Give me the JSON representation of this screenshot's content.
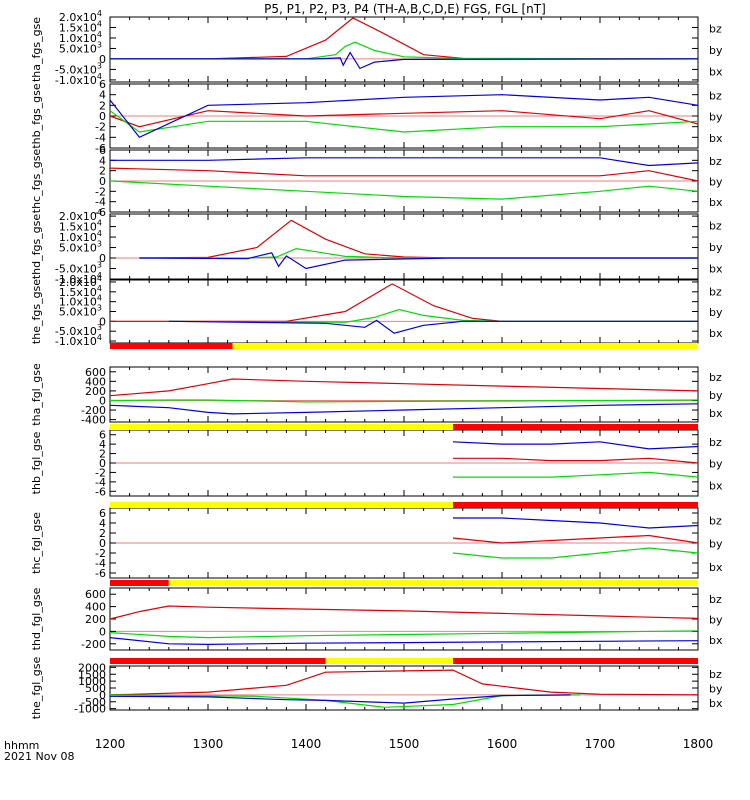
{
  "title": "P5, P1, P2, P3, P4 (TH-A,B,C,D,E) FGS, FGL [nT]",
  "footer": {
    "line1": "hhmm",
    "line2": "2021 Nov 08"
  },
  "colors": {
    "bz": "#e00000",
    "by": "#00dd00",
    "bx": "#0000dd",
    "bar_red": "#ff0000",
    "bar_yellow": "#ffff00"
  },
  "chart_data": {
    "type": "line",
    "x_range": [
      1200,
      1800
    ],
    "x_ticks": [
      "1200",
      "1300",
      "1400",
      "1500",
      "1600",
      "1700",
      "1800"
    ],
    "legend": [
      "bz",
      "by",
      "bx"
    ],
    "panels": [
      {
        "ylabel": "tha_fgs_gse",
        "ylim": [
          -11000,
          20000
        ],
        "ytick_labels": [
          "2.0x10^4",
          "1.5x10^4",
          "1.0x10^4",
          "5.0x10^3",
          "0",
          "-5.0x10^3",
          "-1.0x10^4"
        ],
        "ytick_values": [
          20000,
          15000,
          10000,
          5000,
          0,
          -5000,
          -10000
        ],
        "series": [
          {
            "name": "bz",
            "x": [
              1200,
              1300,
              1380,
              1420,
              1448,
              1480,
              1520,
              1560,
              1800
            ],
            "y": [
              0,
              0,
              1200,
              9000,
              19500,
              12000,
              2000,
              300,
              0
            ]
          },
          {
            "name": "by",
            "x": [
              1200,
              1400,
              1430,
              1440,
              1450,
              1470,
              1500,
              1560,
              1800
            ],
            "y": [
              0,
              0,
              2000,
              6000,
              8000,
              4000,
              1000,
              200,
              0
            ]
          },
          {
            "name": "bx",
            "x": [
              1200,
              1410,
              1435,
              1438,
              1445,
              1455,
              1470,
              1500,
              1800
            ],
            "y": [
              0,
              0,
              500,
              -3000,
              3000,
              -4500,
              -1500,
              -200,
              0
            ]
          }
        ]
      },
      {
        "ylabel": "thb_fgs_gse",
        "ylim": [
          -6,
          6
        ],
        "ytick_labels": [
          "6",
          "4",
          "2",
          "0",
          "-2",
          "-4",
          "-6"
        ],
        "ytick_values": [
          6,
          4,
          2,
          0,
          -2,
          -4,
          -6
        ],
        "series": [
          {
            "name": "bz",
            "x": [
              1200,
              1230,
              1300,
              1400,
              1500,
              1600,
              1700,
              1750,
              1800
            ],
            "y": [
              0,
              -2,
              1,
              0,
              0.5,
              1,
              -0.5,
              1,
              -1.5
            ]
          },
          {
            "name": "by",
            "x": [
              1200,
              1230,
              1300,
              1400,
              1500,
              1600,
              1700,
              1750,
              1800
            ],
            "y": [
              1,
              -3,
              -1,
              -1,
              -3,
              -2,
              -2,
              -1.5,
              -1
            ]
          },
          {
            "name": "bx",
            "x": [
              1200,
              1230,
              1300,
              1400,
              1500,
              1600,
              1700,
              1750,
              1800
            ],
            "y": [
              3,
              -4,
              2,
              2.5,
              3.5,
              4,
              3,
              3.5,
              2
            ]
          }
        ]
      },
      {
        "ylabel": "thc_fgs_gse",
        "ylim": [
          -6,
          6
        ],
        "ytick_labels": [
          "6",
          "4",
          "2",
          "0",
          "-2",
          "-4",
          "-6"
        ],
        "ytick_values": [
          6,
          4,
          2,
          0,
          -2,
          -4,
          -6
        ],
        "series": [
          {
            "name": "bz",
            "x": [
              1200,
              1300,
              1400,
              1500,
              1600,
              1700,
              1750,
              1800
            ],
            "y": [
              2.5,
              2,
              1,
              1,
              1,
              1,
              2,
              0
            ]
          },
          {
            "name": "by",
            "x": [
              1200,
              1300,
              1400,
              1500,
              1600,
              1700,
              1750,
              1800
            ],
            "y": [
              0,
              -1,
              -2,
              -3,
              -3.5,
              -2,
              -1,
              -2
            ]
          },
          {
            "name": "bx",
            "x": [
              1200,
              1300,
              1400,
              1500,
              1600,
              1700,
              1750,
              1800
            ],
            "y": [
              4,
              4,
              4.5,
              4.5,
              4.5,
              4.5,
              3,
              3.5
            ]
          }
        ]
      },
      {
        "ylabel": "thd_fgs_gse",
        "ylim": [
          -10000,
          21000
        ],
        "ytick_labels": [
          "2.0x10^4",
          "1.5x10^4",
          "1.0x10^4",
          "5.0x10^3",
          "0",
          "-5.0x10^3",
          "-1.0x10^4"
        ],
        "ytick_values": [
          20000,
          15000,
          10000,
          5000,
          0,
          -5000,
          -10000
        ],
        "series": [
          {
            "name": "bz",
            "x": [
              1230,
              1300,
              1350,
              1385,
              1420,
              1460,
              1500,
              1550,
              1800
            ],
            "y": [
              0,
              300,
              5000,
              18000,
              9000,
              2000,
              500,
              0,
              0
            ]
          },
          {
            "name": "by",
            "x": [
              1230,
              1340,
              1370,
              1390,
              1410,
              1440,
              1480,
              1550,
              1800
            ],
            "y": [
              0,
              0,
              500,
              4500,
              3000,
              800,
              200,
              0,
              0
            ]
          },
          {
            "name": "bx",
            "x": [
              1230,
              1340,
              1365,
              1372,
              1380,
              1400,
              1440,
              1550,
              1800
            ],
            "y": [
              0,
              -300,
              2500,
              -4000,
              1000,
              -5000,
              -1000,
              0,
              0
            ]
          }
        ]
      },
      {
        "ylabel": "the_fgs_gse",
        "ylim": [
          -11000,
          21000
        ],
        "ytick_labels": [
          "2.0x10^4",
          "1.5x10^4",
          "1.0x10^4",
          "5.0x10^3",
          "0",
          "-5.0x10^3",
          "-1.0x10^4"
        ],
        "ytick_values": [
          20000,
          15000,
          10000,
          5000,
          0,
          -5000,
          -10000
        ],
        "series": [
          {
            "name": "bz",
            "x": [
              1200,
              1380,
              1440,
              1488,
              1530,
              1570,
              1600,
              1800
            ],
            "y": [
              0,
              0,
              5000,
              19000,
              8000,
              1500,
              0,
              0
            ]
          },
          {
            "name": "by",
            "x": [
              1260,
              1440,
              1470,
              1495,
              1520,
              1560,
              1600,
              1800
            ],
            "y": [
              0,
              -500,
              2000,
              6000,
              3000,
              500,
              0,
              0
            ]
          },
          {
            "name": "bx",
            "x": [
              1260,
              1420,
              1460,
              1472,
              1490,
              1520,
              1560,
              1800
            ],
            "y": [
              0,
              -1000,
              -3000,
              500,
              -6000,
              -2000,
              0,
              0
            ]
          }
        ]
      },
      {
        "ylabel": "tha_fgl_gse",
        "ylim": [
          -450,
          700
        ],
        "ytick_labels": [
          "600",
          "400",
          "200",
          "0",
          "-200",
          "-400"
        ],
        "ytick_values": [
          600,
          400,
          200,
          0,
          -200,
          -400
        ],
        "series": [
          {
            "name": "bz",
            "x": [
              1200,
              1260,
              1300,
              1325,
              1400,
              1500,
              1600,
              1700,
              1800
            ],
            "y": [
              100,
              200,
              350,
              450,
              400,
              350,
              300,
              250,
              200
            ]
          },
          {
            "name": "by",
            "x": [
              1200,
              1260,
              1300,
              1325,
              1400,
              1500,
              1600,
              1700,
              1800
            ],
            "y": [
              0,
              10,
              10,
              0,
              -30,
              -20,
              -10,
              0,
              10
            ]
          },
          {
            "name": "bx",
            "x": [
              1200,
              1260,
              1300,
              1325,
              1400,
              1500,
              1600,
              1700,
              1800
            ],
            "y": [
              -100,
              -150,
              -250,
              -280,
              -250,
              -200,
              -150,
              -100,
              -70
            ]
          }
        ]
      },
      {
        "ylabel": "thb_fgl_gse",
        "ylim": [
          -7,
          7
        ],
        "ytick_labels": [
          "6",
          "4",
          "2",
          "0",
          "-2",
          "-4",
          "-6"
        ],
        "ytick_values": [
          6,
          4,
          2,
          0,
          -2,
          -4,
          -6
        ],
        "series": [
          {
            "name": "bz",
            "x": [
              1550,
              1600,
              1650,
              1700,
              1750,
              1800
            ],
            "y": [
              1,
              1,
              0.5,
              0.5,
              1,
              0
            ]
          },
          {
            "name": "by",
            "x": [
              1550,
              1600,
              1650,
              1700,
              1750,
              1800
            ],
            "y": [
              -3,
              -3,
              -3,
              -2.5,
              -2,
              -3
            ]
          },
          {
            "name": "bx",
            "x": [
              1550,
              1600,
              1650,
              1700,
              1750,
              1800
            ],
            "y": [
              4.5,
              4,
              4,
              4.5,
              3,
              3.5
            ]
          }
        ]
      },
      {
        "ylabel": "thc_fgl_gse",
        "ylim": [
          -7,
          7
        ],
        "ytick_labels": [
          "6",
          "4",
          "2",
          "0",
          "-2",
          "-4",
          "-6"
        ],
        "ytick_values": [
          6,
          4,
          2,
          0,
          -2,
          -4,
          -6
        ],
        "series": [
          {
            "name": "bz",
            "x": [
              1550,
              1600,
              1650,
              1700,
              1750,
              1800
            ],
            "y": [
              1,
              0,
              0.5,
              1,
              1.5,
              0
            ]
          },
          {
            "name": "by",
            "x": [
              1550,
              1600,
              1650,
              1700,
              1750,
              1800
            ],
            "y": [
              -2,
              -3,
              -3,
              -2,
              -1,
              -2
            ]
          },
          {
            "name": "bx",
            "x": [
              1550,
              1600,
              1650,
              1700,
              1750,
              1800
            ],
            "y": [
              5,
              5,
              4.5,
              4,
              3,
              3.5
            ]
          }
        ]
      },
      {
        "ylabel": "thd_fgl_gse",
        "ylim": [
          -300,
          700
        ],
        "ytick_labels": [
          "600",
          "400",
          "200",
          "0",
          "-200"
        ],
        "ytick_values": [
          600,
          400,
          200,
          0,
          -200
        ],
        "series": [
          {
            "name": "bz",
            "x": [
              1200,
              1230,
              1260,
              1300,
              1400,
              1500,
              1600,
              1700,
              1800
            ],
            "y": [
              200,
              320,
              410,
              390,
              360,
              330,
              290,
              250,
              210
            ]
          },
          {
            "name": "by",
            "x": [
              1200,
              1260,
              1300,
              1400,
              1500,
              1600,
              1700,
              1800
            ],
            "y": [
              -20,
              -80,
              -100,
              -70,
              -50,
              -30,
              -10,
              10
            ]
          },
          {
            "name": "bx",
            "x": [
              1200,
              1260,
              1300,
              1400,
              1500,
              1600,
              1700,
              1800
            ],
            "y": [
              -100,
              -200,
              -210,
              -190,
              -180,
              -170,
              -160,
              -150
            ]
          }
        ]
      },
      {
        "ylabel": "the_fgl_gse",
        "ylim": [
          -1100,
          2100
        ],
        "ytick_labels": [
          "2000",
          "1500",
          "1000",
          "500",
          "0",
          "-500",
          "-1000"
        ],
        "ytick_values": [
          2000,
          1500,
          1000,
          500,
          0,
          -500,
          -1000
        ],
        "series": [
          {
            "name": "bz",
            "x": [
              1200,
              1300,
              1380,
              1420,
              1550,
              1580,
              1650,
              1700,
              1800
            ],
            "y": [
              0,
              200,
              700,
              1650,
              1800,
              800,
              200,
              50,
              0
            ]
          },
          {
            "name": "by",
            "x": [
              1200,
              1350,
              1420,
              1480,
              1550,
              1600,
              1680
            ],
            "y": [
              0,
              -100,
              -400,
              -900,
              -700,
              -50,
              0
            ]
          },
          {
            "name": "bx",
            "x": [
              1200,
              1300,
              1380,
              1420,
              1500,
              1550,
              1600,
              1670
            ],
            "y": [
              -100,
              -150,
              -350,
              -400,
              -600,
              -300,
              -50,
              0
            ]
          }
        ]
      }
    ],
    "status_bars": [
      {
        "above_panel": 5,
        "segments": [
          {
            "from": 1200,
            "to": 1325,
            "color": "red"
          },
          {
            "from": 1325,
            "to": 1800,
            "color": "yellow"
          }
        ]
      },
      {
        "above_panel": 6,
        "segments": [
          {
            "from": 1200,
            "to": 1550,
            "color": "yellow"
          },
          {
            "from": 1550,
            "to": 1800,
            "color": "red"
          }
        ]
      },
      {
        "above_panel": 7,
        "segments": [
          {
            "from": 1200,
            "to": 1550,
            "color": "yellow"
          },
          {
            "from": 1550,
            "to": 1800,
            "color": "red"
          }
        ]
      },
      {
        "above_panel": 8,
        "segments": [
          {
            "from": 1200,
            "to": 1260,
            "color": "red"
          },
          {
            "from": 1260,
            "to": 1800,
            "color": "yellow"
          }
        ]
      },
      {
        "above_panel": 9,
        "segments": [
          {
            "from": 1200,
            "to": 1420,
            "color": "red"
          },
          {
            "from": 1420,
            "to": 1550,
            "color": "yellow"
          },
          {
            "from": 1550,
            "to": 1800,
            "color": "red"
          }
        ]
      }
    ]
  }
}
